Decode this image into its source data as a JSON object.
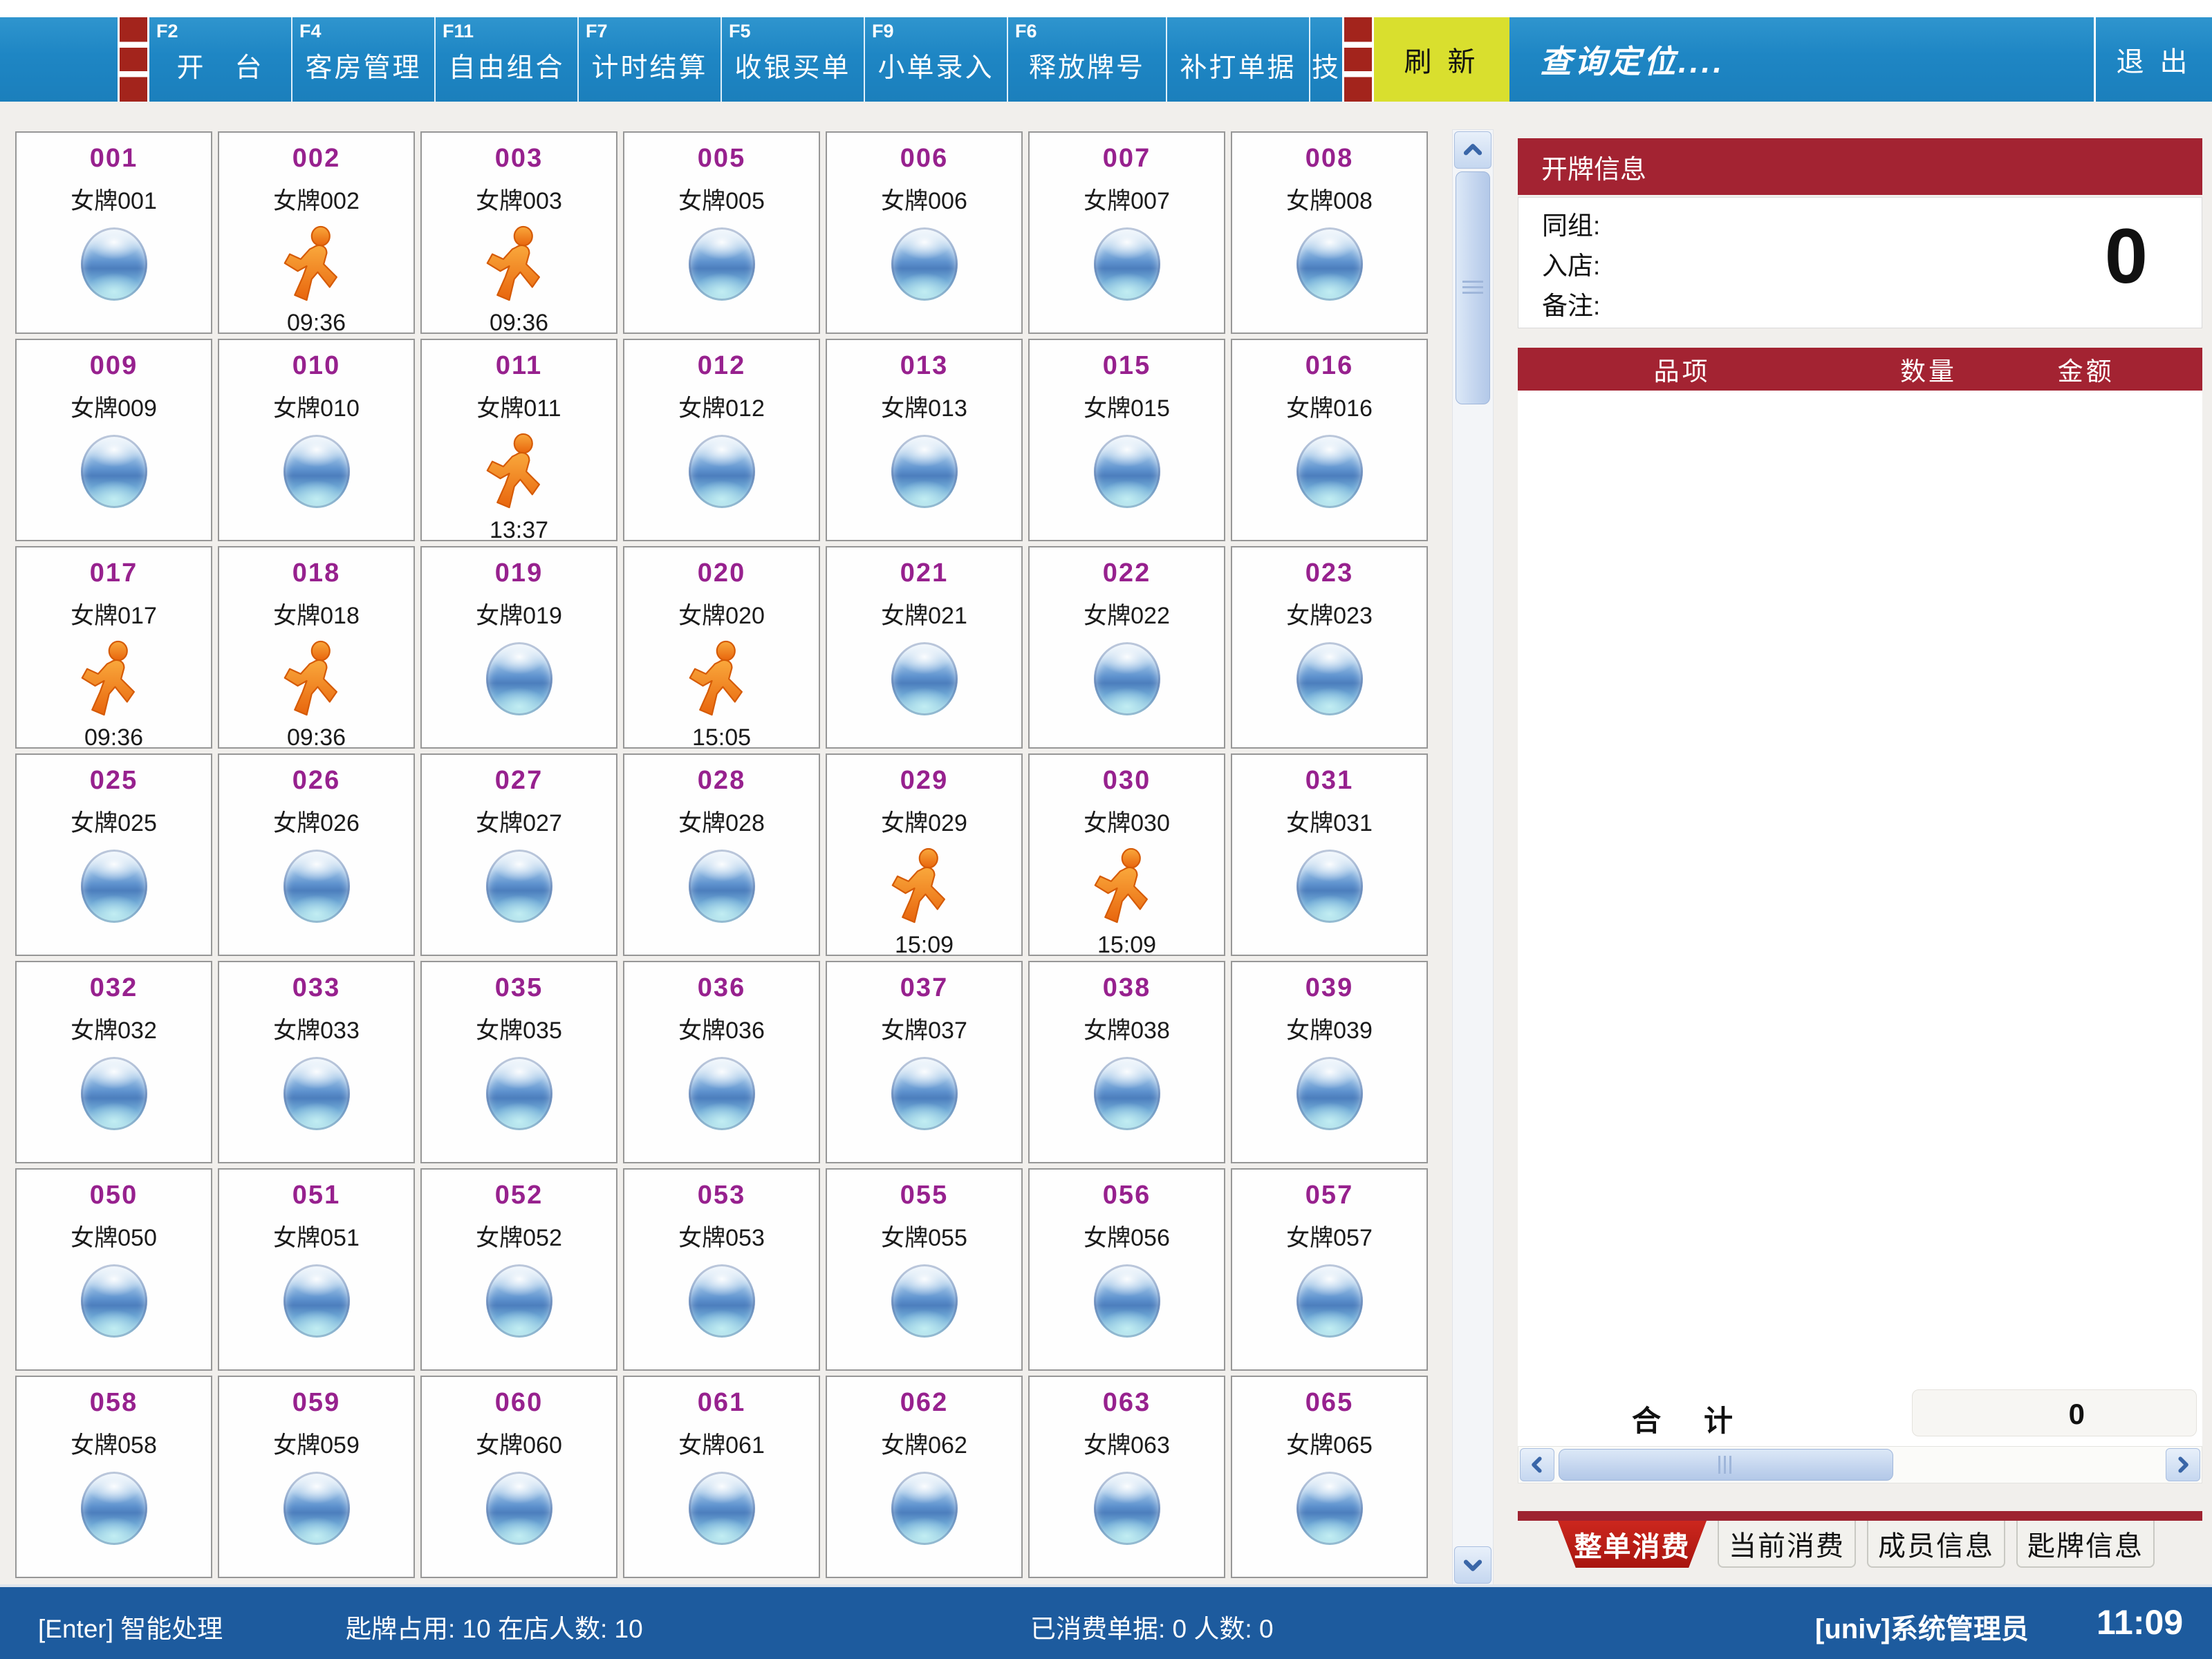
{
  "toolbar": {
    "buttons": [
      {
        "fkey": "F2",
        "label": "开　台"
      },
      {
        "fkey": "F4",
        "label": "客房管理"
      },
      {
        "fkey": "F11",
        "label": "自由组合"
      },
      {
        "fkey": "F7",
        "label": "计时结算"
      },
      {
        "fkey": "F5",
        "label": "收银买单"
      },
      {
        "fkey": "F9",
        "label": "小单录入"
      },
      {
        "fkey": "F6",
        "label": "释放牌号"
      },
      {
        "fkey": "",
        "label": "补打单据"
      },
      {
        "fkey": "",
        "label": "技"
      }
    ],
    "refresh_label": "刷 新",
    "search_hint": "查询定位....",
    "exit_label": "退 出"
  },
  "grid": {
    "cards": [
      {
        "num": "001",
        "name": "女牌001",
        "status": "idle",
        "time": ""
      },
      {
        "num": "002",
        "name": "女牌002",
        "status": "busy",
        "time": "09:36"
      },
      {
        "num": "003",
        "name": "女牌003",
        "status": "busy",
        "time": "09:36"
      },
      {
        "num": "005",
        "name": "女牌005",
        "status": "idle",
        "time": ""
      },
      {
        "num": "006",
        "name": "女牌006",
        "status": "idle",
        "time": ""
      },
      {
        "num": "007",
        "name": "女牌007",
        "status": "idle",
        "time": ""
      },
      {
        "num": "008",
        "name": "女牌008",
        "status": "idle",
        "time": ""
      },
      {
        "num": "009",
        "name": "女牌009",
        "status": "idle",
        "time": ""
      },
      {
        "num": "010",
        "name": "女牌010",
        "status": "idle",
        "time": ""
      },
      {
        "num": "011",
        "name": "女牌011",
        "status": "busy",
        "time": "13:37"
      },
      {
        "num": "012",
        "name": "女牌012",
        "status": "idle",
        "time": ""
      },
      {
        "num": "013",
        "name": "女牌013",
        "status": "idle",
        "time": ""
      },
      {
        "num": "015",
        "name": "女牌015",
        "status": "idle",
        "time": ""
      },
      {
        "num": "016",
        "name": "女牌016",
        "status": "idle",
        "time": ""
      },
      {
        "num": "017",
        "name": "女牌017",
        "status": "busy",
        "time": "09:36"
      },
      {
        "num": "018",
        "name": "女牌018",
        "status": "busy",
        "time": "09:36"
      },
      {
        "num": "019",
        "name": "女牌019",
        "status": "idle",
        "time": ""
      },
      {
        "num": "020",
        "name": "女牌020",
        "status": "busy",
        "time": "15:05"
      },
      {
        "num": "021",
        "name": "女牌021",
        "status": "idle",
        "time": ""
      },
      {
        "num": "022",
        "name": "女牌022",
        "status": "idle",
        "time": ""
      },
      {
        "num": "023",
        "name": "女牌023",
        "status": "idle",
        "time": ""
      },
      {
        "num": "025",
        "name": "女牌025",
        "status": "idle",
        "time": ""
      },
      {
        "num": "026",
        "name": "女牌026",
        "status": "idle",
        "time": ""
      },
      {
        "num": "027",
        "name": "女牌027",
        "status": "idle",
        "time": ""
      },
      {
        "num": "028",
        "name": "女牌028",
        "status": "idle",
        "time": ""
      },
      {
        "num": "029",
        "name": "女牌029",
        "status": "busy",
        "time": "15:09"
      },
      {
        "num": "030",
        "name": "女牌030",
        "status": "busy",
        "time": "15:09"
      },
      {
        "num": "031",
        "name": "女牌031",
        "status": "idle",
        "time": ""
      },
      {
        "num": "032",
        "name": "女牌032",
        "status": "idle",
        "time": ""
      },
      {
        "num": "033",
        "name": "女牌033",
        "status": "idle",
        "time": ""
      },
      {
        "num": "035",
        "name": "女牌035",
        "status": "idle",
        "time": ""
      },
      {
        "num": "036",
        "name": "女牌036",
        "status": "idle",
        "time": ""
      },
      {
        "num": "037",
        "name": "女牌037",
        "status": "idle",
        "time": ""
      },
      {
        "num": "038",
        "name": "女牌038",
        "status": "idle",
        "time": ""
      },
      {
        "num": "039",
        "name": "女牌039",
        "status": "idle",
        "time": ""
      },
      {
        "num": "050",
        "name": "女牌050",
        "status": "idle",
        "time": ""
      },
      {
        "num": "051",
        "name": "女牌051",
        "status": "idle",
        "time": ""
      },
      {
        "num": "052",
        "name": "女牌052",
        "status": "idle",
        "time": ""
      },
      {
        "num": "053",
        "name": "女牌053",
        "status": "idle",
        "time": ""
      },
      {
        "num": "055",
        "name": "女牌055",
        "status": "idle",
        "time": ""
      },
      {
        "num": "056",
        "name": "女牌056",
        "status": "idle",
        "time": ""
      },
      {
        "num": "057",
        "name": "女牌057",
        "status": "idle",
        "time": ""
      },
      {
        "num": "058",
        "name": "女牌058",
        "status": "idle",
        "time": ""
      },
      {
        "num": "059",
        "name": "女牌059",
        "status": "idle",
        "time": ""
      },
      {
        "num": "060",
        "name": "女牌060",
        "status": "idle",
        "time": ""
      },
      {
        "num": "061",
        "name": "女牌061",
        "status": "idle",
        "time": ""
      },
      {
        "num": "062",
        "name": "女牌062",
        "status": "idle",
        "time": ""
      },
      {
        "num": "063",
        "name": "女牌063",
        "status": "idle",
        "time": ""
      },
      {
        "num": "065",
        "name": "女牌065",
        "status": "idle",
        "time": ""
      }
    ]
  },
  "panel": {
    "header": "开牌信息",
    "fields": [
      "同组:",
      "入店:",
      "备注:"
    ],
    "badge_value": "0",
    "table": {
      "columns": [
        "品项",
        "数量",
        "金额"
      ],
      "rows": []
    },
    "total_label": "合　计",
    "total_value": "0",
    "tabs": [
      {
        "label": "整单消费",
        "active": true
      },
      {
        "label": "当前消费",
        "active": false
      },
      {
        "label": "成员信息",
        "active": false
      },
      {
        "label": "匙牌信息",
        "active": false
      }
    ]
  },
  "statusbar": {
    "hint": "[Enter] 智能处理",
    "occupancy": "匙牌占用: 10 在店人数: 10",
    "consumed": "已消费单据: 0 人数: 0",
    "user": "[univ]系统管理员",
    "time": "11:09"
  },
  "colors": {
    "toolbar_blue": "#1E86C4",
    "statusbar_blue": "#1D5B9E",
    "panel_red": "#A32332",
    "active_tab_red": "#C9261D",
    "refresh_yellow": "#D9DF2E",
    "card_number_purple": "#97218E",
    "brick_red": "#A3241C",
    "sphere_blue": "#5E92CE",
    "runner_orange": "#EF7F17"
  }
}
